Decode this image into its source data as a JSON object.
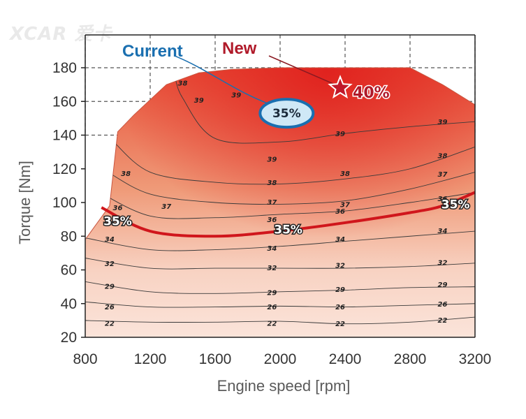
{
  "watermark": "XCAR 爱卡",
  "chart_data": {
    "type": "heatmap",
    "subtype": "engine efficiency contour map",
    "xlabel": "Engine speed [rpm]",
    "ylabel": "Torque [Nm]",
    "xlim": [
      800,
      3200
    ],
    "ylim": [
      20,
      180
    ],
    "x_ticks": [
      800,
      1200,
      1600,
      2000,
      2400,
      2800,
      3200
    ],
    "y_ticks": [
      20,
      40,
      60,
      80,
      100,
      120,
      140,
      160,
      180
    ],
    "grid": "dashed, upper region",
    "colors": {
      "high": "#e23a30",
      "low": "#fbe4da",
      "highlight_line": "#d0161c",
      "current": "#1a6fb0",
      "current_fill": "#cfe8f6",
      "new": "#b01a2a"
    },
    "max_torque_curve": [
      [
        800,
        78
      ],
      [
        950,
        98
      ],
      [
        1000,
        142
      ],
      [
        1100,
        152
      ],
      [
        1300,
        170
      ],
      [
        1500,
        177
      ],
      [
        1700,
        179
      ],
      [
        2000,
        180
      ],
      [
        2400,
        180
      ],
      [
        2800,
        180
      ],
      [
        3000,
        170
      ],
      [
        3200,
        158
      ]
    ],
    "contours": [
      {
        "level": "22",
        "points": [
          [
            800,
            30
          ],
          [
            1200,
            29
          ],
          [
            1600,
            29
          ],
          [
            2000,
            29.5
          ],
          [
            2400,
            28
          ],
          [
            2800,
            29
          ],
          [
            3200,
            32
          ]
        ],
        "labels": [
          [
            950,
            28.5
          ],
          [
            1950,
            28.5
          ],
          [
            2370,
            28.3
          ],
          [
            3000,
            30.3
          ]
        ]
      },
      {
        "level": "26",
        "points": [
          [
            800,
            41
          ],
          [
            1200,
            38
          ],
          [
            1600,
            38
          ],
          [
            2000,
            38.5
          ],
          [
            2400,
            38
          ],
          [
            2800,
            39
          ],
          [
            3200,
            40
          ]
        ],
        "labels": [
          [
            950,
            38.3
          ],
          [
            1950,
            38.3
          ],
          [
            2370,
            38.3
          ],
          [
            3000,
            40
          ]
        ]
      },
      {
        "level": "29",
        "points": [
          [
            800,
            53
          ],
          [
            1200,
            47
          ],
          [
            1600,
            46
          ],
          [
            2000,
            47
          ],
          [
            2400,
            48
          ],
          [
            2800,
            49.5
          ],
          [
            3200,
            50
          ]
        ],
        "labels": [
          [
            950,
            50.5
          ],
          [
            1950,
            46.8
          ],
          [
            2370,
            48.5
          ],
          [
            3000,
            51.5
          ]
        ]
      },
      {
        "level": "32",
        "points": [
          [
            800,
            67
          ],
          [
            1200,
            61
          ],
          [
            1600,
            61
          ],
          [
            2000,
            61
          ],
          [
            2400,
            61
          ],
          [
            2800,
            62
          ],
          [
            3200,
            64
          ]
        ],
        "labels": [
          [
            950,
            64
          ],
          [
            1950,
            61.5
          ],
          [
            2370,
            63
          ],
          [
            3000,
            64.5
          ]
        ]
      },
      {
        "level": "34",
        "points": [
          [
            800,
            79
          ],
          [
            1200,
            72
          ],
          [
            1600,
            72
          ],
          [
            2000,
            74
          ],
          [
            2400,
            77
          ],
          [
            2800,
            80
          ],
          [
            3200,
            83
          ]
        ],
        "labels": [
          [
            950,
            78.5
          ],
          [
            1950,
            73
          ],
          [
            2370,
            78.5
          ],
          [
            3000,
            83.5
          ]
        ]
      },
      {
        "level": "36",
        "points": [
          [
            870,
            107
          ],
          [
            1200,
            92
          ],
          [
            1600,
            91
          ],
          [
            2000,
            93
          ],
          [
            2400,
            95
          ],
          [
            2800,
            100
          ],
          [
            3200,
            106
          ]
        ],
        "labels": [
          [
            1000,
            97
          ],
          [
            1950,
            90
          ],
          [
            2370,
            95
          ],
          [
            3000,
            102.5
          ]
        ]
      },
      {
        "level": "37",
        "points": [
          [
            940,
            118
          ],
          [
            1200,
            105
          ],
          [
            1600,
            100
          ],
          [
            2000,
            99
          ],
          [
            2400,
            101
          ],
          [
            2800,
            108
          ],
          [
            3200,
            118
          ]
        ],
        "labels": [
          [
            1300,
            98
          ],
          [
            1950,
            100.5
          ],
          [
            2400,
            99
          ],
          [
            3000,
            117
          ]
        ]
      },
      {
        "level": "38",
        "points": [
          [
            965,
            137
          ],
          [
            1200,
            118
          ],
          [
            1600,
            112
          ],
          [
            2000,
            111
          ],
          [
            2400,
            114
          ],
          [
            2800,
            120
          ],
          [
            3200,
            133
          ]
        ],
        "labels": [
          [
            1050,
            117.5
          ],
          [
            1950,
            112
          ],
          [
            2400,
            117.5
          ],
          [
            3000,
            128
          ]
        ]
      },
      {
        "level": "39",
        "points": [
          [
            1350,
            176
          ],
          [
            1400,
            162
          ],
          [
            1600,
            138
          ],
          [
            2000,
            136
          ],
          [
            2400,
            141
          ],
          [
            2800,
            145
          ],
          [
            3200,
            148
          ]
        ],
        "labels": [
          [
            1500,
            161
          ],
          [
            1950,
            126
          ],
          [
            2370,
            141
          ],
          [
            3000,
            148
          ]
        ]
      }
    ],
    "contour_label_extra": [
      {
        "level": "38",
        "x": 1400,
        "y": 171
      },
      {
        "level": "39",
        "x": 1730,
        "y": 164
      }
    ],
    "highlight_35_line": {
      "label": "35%",
      "points": [
        [
          900,
          97
        ],
        [
          1200,
          83
        ],
        [
          1600,
          80
        ],
        [
          2000,
          83
        ],
        [
          2400,
          88
        ],
        [
          2800,
          94
        ],
        [
          3000,
          98
        ],
        [
          3200,
          106
        ]
      ],
      "label_positions": [
        [
          1000,
          89
        ],
        [
          2050,
          84
        ],
        [
          3080,
          99
        ]
      ]
    },
    "current": {
      "label": "Current",
      "value": "35%",
      "x": 2040,
      "y": 153
    },
    "new": {
      "label": "New",
      "value": "40%",
      "x": 2370,
      "y": 168
    }
  }
}
